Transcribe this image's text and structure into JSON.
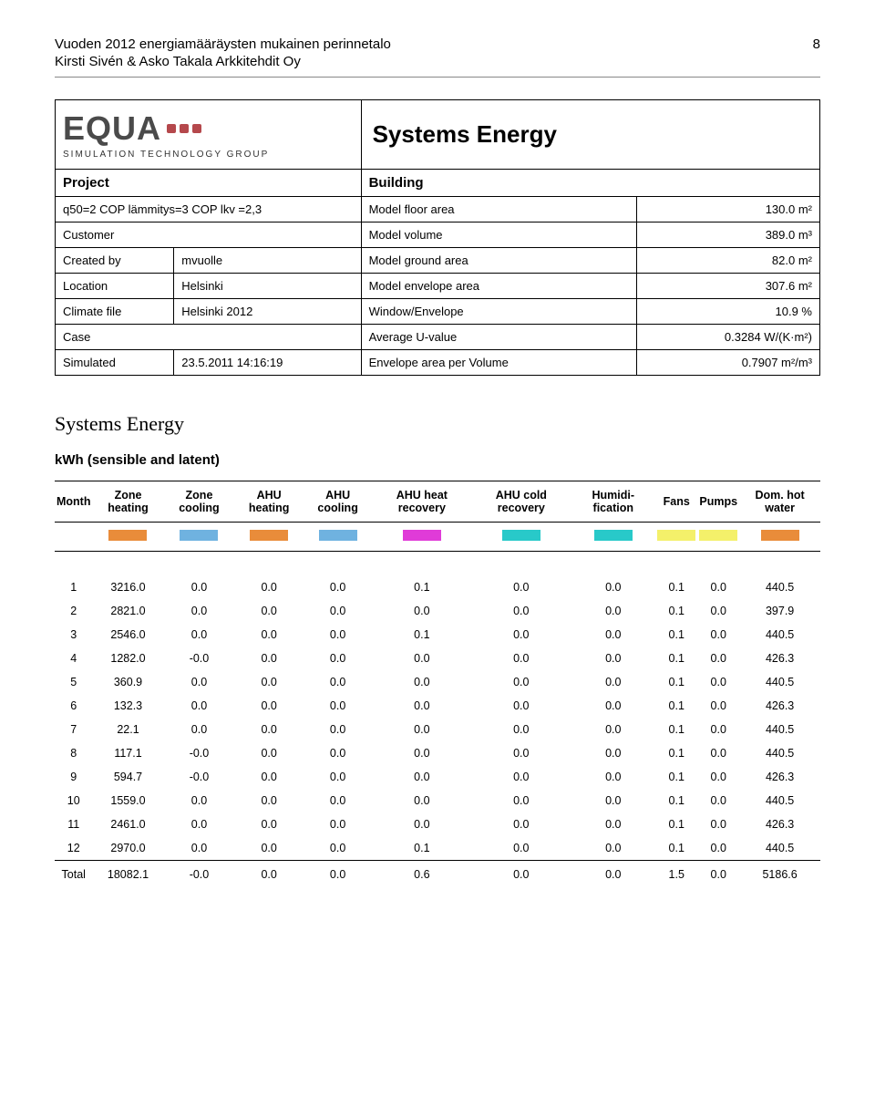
{
  "header": {
    "line1": "Vuoden 2012 energiamääräysten mukainen perinnetalo",
    "line2": "Kirsti Sivén & Asko Takala Arkkitehdit Oy",
    "page_number": "8"
  },
  "logo": {
    "text": "EQUA",
    "subtitle": "SIMULATION TECHNOLOGY GROUP",
    "dot_color": "#b5484c",
    "text_color": "#4a4a4a"
  },
  "main_title": "Systems Energy",
  "project": {
    "left_header": "Project",
    "right_header": "Building",
    "rows": [
      {
        "l1": "q50=2 COP lämmitys=3 COP lkv =2,3",
        "l2": "",
        "r1": "Model floor area",
        "r2": "130.0 m²"
      },
      {
        "l1": "Customer",
        "l2": "",
        "r1": "Model volume",
        "r2": "389.0 m³"
      },
      {
        "l1": "Created by",
        "l2": "mvuolle",
        "r1": "Model ground area",
        "r2": "82.0 m²"
      },
      {
        "l1": "Location",
        "l2": "Helsinki",
        "r1": "Model envelope area",
        "r2": "307.6 m²"
      },
      {
        "l1": "Climate file",
        "l2": "Helsinki 2012",
        "r1": "Window/Envelope",
        "r2": "10.9 %"
      },
      {
        "l1": "Case",
        "l2": "",
        "r1": "Average U-value",
        "r2": "0.3284 W/(K·m²)"
      },
      {
        "l1": "Simulated",
        "l2": "23.5.2011 14:16:19",
        "r1": "Envelope area per Volume",
        "r2": "0.7907 m²/m³"
      }
    ]
  },
  "section_heading": "Systems Energy",
  "sub_heading": "kWh (sensible and latent)",
  "table": {
    "columns": [
      "Month",
      "Zone heating",
      "Zone cooling",
      "AHU heating",
      "AHU cooling",
      "AHU heat recovery",
      "AHU cold recovery",
      "Humidi- fication",
      "Fans",
      "Pumps",
      "Dom. hot water"
    ],
    "swatches": [
      null,
      "#e98c3a",
      "#6fb2e0",
      "#e98c3a",
      "#6fb2e0",
      "#e03bd8",
      "#28c9c9",
      "#28c9c9",
      "#f4f06a",
      "#f4f06a",
      "#e98c3a"
    ],
    "rows": [
      [
        "1",
        "3216.0",
        "0.0",
        "0.0",
        "0.0",
        "0.1",
        "0.0",
        "0.0",
        "0.1",
        "0.0",
        "440.5"
      ],
      [
        "2",
        "2821.0",
        "0.0",
        "0.0",
        "0.0",
        "0.0",
        "0.0",
        "0.0",
        "0.1",
        "0.0",
        "397.9"
      ],
      [
        "3",
        "2546.0",
        "0.0",
        "0.0",
        "0.0",
        "0.1",
        "0.0",
        "0.0",
        "0.1",
        "0.0",
        "440.5"
      ],
      [
        "4",
        "1282.0",
        "-0.0",
        "0.0",
        "0.0",
        "0.0",
        "0.0",
        "0.0",
        "0.1",
        "0.0",
        "426.3"
      ],
      [
        "5",
        "360.9",
        "0.0",
        "0.0",
        "0.0",
        "0.0",
        "0.0",
        "0.0",
        "0.1",
        "0.0",
        "440.5"
      ],
      [
        "6",
        "132.3",
        "0.0",
        "0.0",
        "0.0",
        "0.0",
        "0.0",
        "0.0",
        "0.1",
        "0.0",
        "426.3"
      ],
      [
        "7",
        "22.1",
        "0.0",
        "0.0",
        "0.0",
        "0.0",
        "0.0",
        "0.0",
        "0.1",
        "0.0",
        "440.5"
      ],
      [
        "8",
        "117.1",
        "-0.0",
        "0.0",
        "0.0",
        "0.0",
        "0.0",
        "0.0",
        "0.1",
        "0.0",
        "440.5"
      ],
      [
        "9",
        "594.7",
        "-0.0",
        "0.0",
        "0.0",
        "0.0",
        "0.0",
        "0.0",
        "0.1",
        "0.0",
        "426.3"
      ],
      [
        "10",
        "1559.0",
        "0.0",
        "0.0",
        "0.0",
        "0.0",
        "0.0",
        "0.0",
        "0.1",
        "0.0",
        "440.5"
      ],
      [
        "11",
        "2461.0",
        "0.0",
        "0.0",
        "0.0",
        "0.0",
        "0.0",
        "0.0",
        "0.1",
        "0.0",
        "426.3"
      ],
      [
        "12",
        "2970.0",
        "0.0",
        "0.0",
        "0.0",
        "0.1",
        "0.0",
        "0.0",
        "0.1",
        "0.0",
        "440.5"
      ]
    ],
    "total_label": "Total",
    "total": [
      "18082.1",
      "-0.0",
      "0.0",
      "0.0",
      "0.6",
      "0.0",
      "0.0",
      "1.5",
      "0.0",
      "5186.6"
    ]
  }
}
